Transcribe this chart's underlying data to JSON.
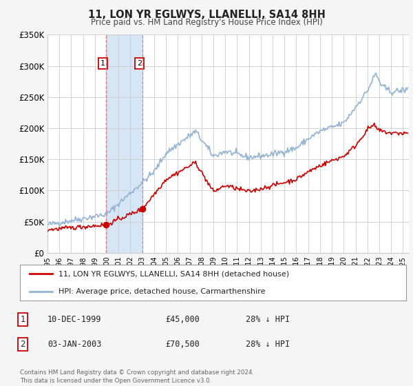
{
  "title": "11, LON YR EGLWYS, LLANELLI, SA14 8HH",
  "subtitle": "Price paid vs. HM Land Registry's House Price Index (HPI)",
  "ylim": [
    0,
    350000
  ],
  "yticks": [
    0,
    50000,
    100000,
    150000,
    200000,
    250000,
    300000,
    350000
  ],
  "ytick_labels": [
    "£0",
    "£50K",
    "£100K",
    "£150K",
    "£200K",
    "£250K",
    "£300K",
    "£350K"
  ],
  "xlim_start": 1995.0,
  "xlim_end": 2025.5,
  "background_color": "#f5f5f5",
  "plot_bg_color": "#ffffff",
  "grid_color": "#cccccc",
  "hpi_color": "#92b4d4",
  "price_color": "#cc0000",
  "sale1_date": 1999.94,
  "sale1_price": 45000,
  "sale2_date": 2003.01,
  "sale2_price": 70500,
  "legend_label_price": "11, LON YR EGLWYS, LLANELLI, SA14 8HH (detached house)",
  "legend_label_hpi": "HPI: Average price, detached house, Carmarthenshire",
  "table_row1": [
    "1",
    "10-DEC-1999",
    "£45,000",
    "28% ↓ HPI"
  ],
  "table_row2": [
    "2",
    "03-JAN-2003",
    "£70,500",
    "28% ↓ HPI"
  ],
  "footer": "Contains HM Land Registry data © Crown copyright and database right 2024.\nThis data is licensed under the Open Government Licence v3.0.",
  "shade_x1": 1999.94,
  "shade_x2": 2003.01,
  "marker_color": "#cc0000",
  "vline_color": "#e08080",
  "box_color": "#cc0000"
}
